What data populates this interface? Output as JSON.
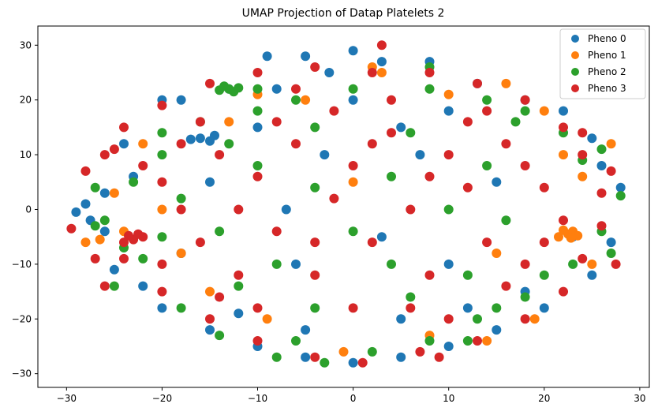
{
  "chart_data": {
    "type": "scatter",
    "title": "UMAP Projection of Datap Platelets 2",
    "xlabel": "",
    "ylabel": "",
    "xlim": [
      -33,
      31
    ],
    "ylim": [
      -32.5,
      33.5
    ],
    "xticks": [
      -30,
      -20,
      -10,
      0,
      10,
      20,
      30
    ],
    "yticks": [
      -30,
      -20,
      -10,
      0,
      10,
      20,
      30
    ],
    "grid": false,
    "legend_position": "top-right",
    "series": [
      {
        "name": "Pheno 0",
        "color": "#1f77b4",
        "points": [
          [
            -16,
            13
          ],
          [
            -15,
            12.5
          ],
          [
            -14.5,
            13.5
          ],
          [
            -17,
            12.8
          ],
          [
            -13,
            22
          ],
          [
            -2.5,
            25
          ],
          [
            0,
            29
          ],
          [
            -5,
            28
          ],
          [
            3,
            27
          ],
          [
            -9,
            28
          ],
          [
            8,
            27
          ],
          [
            -29,
            -0.5
          ],
          [
            -28,
            1
          ],
          [
            -27.5,
            -2
          ],
          [
            -26,
            3
          ],
          [
            -26,
            -4
          ],
          [
            -25,
            -11
          ],
          [
            -24,
            12
          ],
          [
            -20,
            -18
          ],
          [
            -15,
            -22
          ],
          [
            -10,
            -25
          ],
          [
            -5,
            -27
          ],
          [
            0,
            -28
          ],
          [
            5,
            -27
          ],
          [
            10,
            -25
          ],
          [
            15,
            -22
          ],
          [
            20,
            -18
          ],
          [
            25,
            -12
          ],
          [
            27,
            -6
          ],
          [
            28,
            4
          ],
          [
            26,
            8
          ],
          [
            25,
            13
          ],
          [
            22,
            18
          ],
          [
            18,
            20
          ],
          [
            13,
            23
          ],
          [
            -20,
            20
          ],
          [
            -18,
            20
          ],
          [
            -22,
            -14
          ],
          [
            -12,
            -19
          ],
          [
            0,
            20
          ],
          [
            5,
            15
          ],
          [
            -10,
            15
          ],
          [
            -6,
            -10
          ],
          [
            10,
            -10
          ],
          [
            15,
            5
          ],
          [
            -15,
            5
          ],
          [
            5,
            -20
          ],
          [
            -5,
            -22
          ],
          [
            10,
            18
          ],
          [
            -8,
            22
          ],
          [
            23,
            -5
          ],
          [
            -23,
            6
          ],
          [
            18,
            -15
          ],
          [
            -18,
            -8
          ],
          [
            12,
            -18
          ],
          [
            -3,
            10
          ],
          [
            3,
            -5
          ],
          [
            7,
            10
          ],
          [
            -7,
            0
          ]
        ]
      },
      {
        "name": "Pheno 1",
        "color": "#ff7f0e",
        "points": [
          [
            22.5,
            -4.5
          ],
          [
            23,
            -4
          ],
          [
            21.5,
            -5
          ],
          [
            22,
            -3.8
          ],
          [
            23.5,
            -4.8
          ],
          [
            22.8,
            -5.2
          ],
          [
            27,
            12
          ],
          [
            -26.5,
            -5.5
          ],
          [
            -25,
            3
          ],
          [
            -28,
            -6
          ],
          [
            -18,
            -8
          ],
          [
            -24,
            -4
          ],
          [
            -10,
            21
          ],
          [
            -5,
            20
          ],
          [
            2,
            26
          ],
          [
            16,
            23
          ],
          [
            20,
            18
          ],
          [
            24,
            6
          ],
          [
            22,
            10
          ],
          [
            14,
            -24
          ],
          [
            -1,
            -26
          ],
          [
            -9,
            -20
          ],
          [
            15,
            -8
          ],
          [
            3,
            25
          ],
          [
            -13,
            16
          ],
          [
            10,
            21
          ],
          [
            -20,
            0
          ],
          [
            25,
            -10
          ],
          [
            19,
            -20
          ],
          [
            -22,
            12
          ],
          [
            -15,
            -15
          ],
          [
            8,
            -23
          ],
          [
            0,
            5
          ]
        ]
      },
      {
        "name": "Pheno 2",
        "color": "#2ca02c",
        "points": [
          [
            -13,
            22
          ],
          [
            -12.5,
            21.5
          ],
          [
            -13.5,
            22.5
          ],
          [
            -12,
            22.2
          ],
          [
            -14,
            21.8
          ],
          [
            28,
            2.5
          ],
          [
            -27,
            -3
          ],
          [
            -26,
            -2
          ],
          [
            -23,
            5
          ],
          [
            -22,
            -9
          ],
          [
            -25,
            -14
          ],
          [
            -18,
            -18
          ],
          [
            -14,
            -23
          ],
          [
            -8,
            -27
          ],
          [
            -3,
            -28
          ],
          [
            2,
            -26
          ],
          [
            8,
            -24
          ],
          [
            13,
            -20
          ],
          [
            18,
            -16
          ],
          [
            23,
            -10
          ],
          [
            26,
            -4
          ],
          [
            24,
            9
          ],
          [
            22,
            14
          ],
          [
            18,
            18
          ],
          [
            14,
            20
          ],
          [
            8,
            22
          ],
          [
            0,
            22
          ],
          [
            -6,
            20
          ],
          [
            -10,
            18
          ],
          [
            -16,
            16
          ],
          [
            -20,
            10
          ],
          [
            -18,
            2
          ],
          [
            -20,
            -5
          ],
          [
            -12,
            -14
          ],
          [
            -4,
            -18
          ],
          [
            6,
            -16
          ],
          [
            12,
            -12
          ],
          [
            16,
            -2
          ],
          [
            14,
            8
          ],
          [
            6,
            14
          ],
          [
            -4,
            15
          ],
          [
            -10,
            8
          ],
          [
            -14,
            -4
          ],
          [
            -8,
            -10
          ],
          [
            4,
            -10
          ],
          [
            10,
            0
          ],
          [
            4,
            6
          ],
          [
            -4,
            4
          ],
          [
            0,
            -4
          ],
          [
            17,
            16
          ],
          [
            -24,
            -7
          ],
          [
            26,
            11
          ],
          [
            12,
            -24
          ],
          [
            -6,
            -24
          ],
          [
            20,
            -12
          ],
          [
            -20,
            14
          ],
          [
            27,
            -8
          ],
          [
            -27,
            4
          ],
          [
            -13,
            12
          ],
          [
            15,
            -18
          ],
          [
            -10,
            22
          ],
          [
            8,
            26
          ]
        ]
      },
      {
        "name": "Pheno 3",
        "color": "#d62728",
        "points": [
          [
            -23,
            -5.5
          ],
          [
            -22,
            -5
          ],
          [
            -24,
            -6
          ],
          [
            -22.5,
            -4.5
          ],
          [
            -23.5,
            -4.8
          ],
          [
            3,
            30
          ],
          [
            27.5,
            -10
          ],
          [
            -29.5,
            -3.5
          ],
          [
            -28,
            7
          ],
          [
            -26,
            10
          ],
          [
            -24,
            15
          ],
          [
            -20,
            19
          ],
          [
            -15,
            23
          ],
          [
            -10,
            25
          ],
          [
            -4,
            26
          ],
          [
            2,
            25
          ],
          [
            8,
            25
          ],
          [
            13,
            23
          ],
          [
            18,
            20
          ],
          [
            22,
            15
          ],
          [
            24,
            10
          ],
          [
            26,
            3
          ],
          [
            26,
            -3
          ],
          [
            24,
            -9
          ],
          [
            22,
            -15
          ],
          [
            18,
            -20
          ],
          [
            13,
            -24
          ],
          [
            7,
            -26
          ],
          [
            1,
            -28
          ],
          [
            -4,
            -27
          ],
          [
            -10,
            -24
          ],
          [
            -15,
            -20
          ],
          [
            -20,
            -15
          ],
          [
            -24,
            -9
          ],
          [
            -26,
            -14
          ],
          [
            -27,
            -9
          ],
          [
            -20,
            5
          ],
          [
            -18,
            0
          ],
          [
            -16,
            -6
          ],
          [
            -14,
            10
          ],
          [
            -12,
            0
          ],
          [
            -10,
            6
          ],
          [
            -8,
            -4
          ],
          [
            -6,
            12
          ],
          [
            -4,
            -12
          ],
          [
            -2,
            2
          ],
          [
            0,
            8
          ],
          [
            2,
            -6
          ],
          [
            4,
            14
          ],
          [
            6,
            0
          ],
          [
            8,
            -12
          ],
          [
            10,
            10
          ],
          [
            12,
            4
          ],
          [
            14,
            -6
          ],
          [
            16,
            12
          ],
          [
            18,
            -10
          ],
          [
            20,
            4
          ],
          [
            -2,
            18
          ],
          [
            6,
            -18
          ],
          [
            -12,
            -12
          ],
          [
            12,
            16
          ],
          [
            -8,
            16
          ],
          [
            -16,
            16
          ],
          [
            0,
            -18
          ],
          [
            10,
            -20
          ],
          [
            18,
            8
          ],
          [
            -20,
            -10
          ],
          [
            -6,
            22
          ],
          [
            4,
            20
          ],
          [
            14,
            18
          ],
          [
            -10,
            -18
          ],
          [
            16,
            -14
          ],
          [
            20,
            -6
          ],
          [
            -18,
            12
          ],
          [
            2,
            12
          ],
          [
            -4,
            -6
          ],
          [
            8,
            6
          ],
          [
            -14,
            -16
          ],
          [
            22,
            -2
          ],
          [
            24,
            14
          ],
          [
            -22,
            8
          ],
          [
            9,
            -27
          ],
          [
            27,
            7
          ],
          [
            -25,
            11
          ]
        ]
      }
    ]
  }
}
